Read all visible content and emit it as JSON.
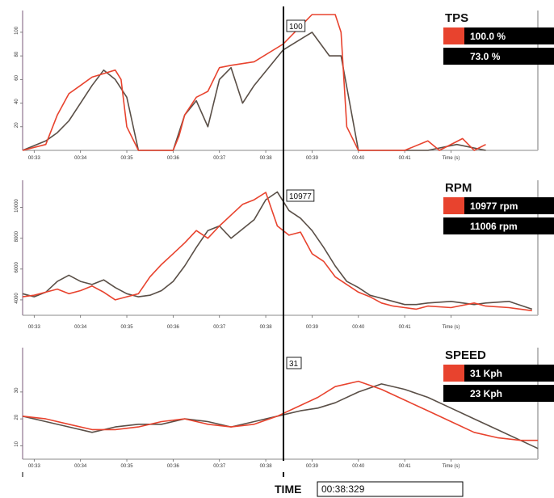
{
  "colors": {
    "red": "#e8432e",
    "gray": "#5a4f47",
    "black": "#000000",
    "grid": "#cfcfcf"
  },
  "cursor": {
    "time_label": "TIME",
    "time_value": "00:38:329",
    "x_time": 38.329
  },
  "chart_data": [
    {
      "type": "line",
      "title": "TPS",
      "ylim": [
        0,
        115
      ],
      "yticks": [
        20,
        40,
        60,
        80,
        100
      ],
      "xlim": [
        33.0,
        41.9
      ],
      "xticks": [
        {
          "t": 33.2,
          "label": "00:33"
        },
        {
          "t": 34.0,
          "label": "00:34"
        },
        {
          "t": 34.8,
          "label": "00:35"
        },
        {
          "t": 35.6,
          "label": "00:36"
        },
        {
          "t": 36.4,
          "label": "00:37"
        },
        {
          "t": 37.2,
          "label": "00:38"
        },
        {
          "t": 38.0,
          "label": "00:39"
        },
        {
          "t": 38.8,
          "label": "00:40"
        },
        {
          "t": 39.6,
          "label": "00:41"
        },
        {
          "t": 40.4,
          "label": "Time (s)"
        }
      ],
      "cursor_label": "100",
      "series": [
        {
          "color": "#e8432e",
          "values_label": "100.0 %",
          "x": [
            33.0,
            33.4,
            33.6,
            33.8,
            34.0,
            34.2,
            34.6,
            34.7,
            34.8,
            35.0,
            35.6,
            35.7,
            35.8,
            36.0,
            36.2,
            36.4,
            36.6,
            37.0,
            37.5,
            38.0,
            38.4,
            38.5,
            38.6,
            38.8,
            39.0,
            39.2,
            39.4,
            39.6,
            40.0,
            40.2,
            40.6,
            40.8,
            41.0
          ],
          "y": [
            0,
            5,
            30,
            48,
            55,
            62,
            68,
            60,
            20,
            0,
            0,
            12,
            30,
            45,
            50,
            70,
            72,
            75,
            90,
            115,
            115,
            100,
            20,
            0,
            0,
            0,
            0,
            0,
            8,
            0,
            10,
            0,
            5
          ]
        },
        {
          "color": "#5a4f47",
          "values_label": "73.0 %",
          "x": [
            33.0,
            33.4,
            33.6,
            33.8,
            34.0,
            34.2,
            34.4,
            34.6,
            34.8,
            35.0,
            35.2,
            35.4,
            35.6,
            35.8,
            36.0,
            36.2,
            36.4,
            36.6,
            36.8,
            37.0,
            37.5,
            38.0,
            38.3,
            38.5,
            38.8,
            39.0,
            39.5,
            40.0,
            40.5,
            41.0
          ],
          "y": [
            0,
            8,
            15,
            25,
            40,
            55,
            68,
            60,
            45,
            0,
            0,
            0,
            0,
            30,
            42,
            20,
            60,
            70,
            40,
            55,
            85,
            100,
            80,
            80,
            0,
            0,
            0,
            0,
            5,
            0
          ]
        }
      ]
    },
    {
      "type": "line",
      "title": "RPM",
      "ylim": [
        3000,
        11500
      ],
      "yticks": [
        4000,
        6000,
        8000,
        10000
      ],
      "xlim": [
        33.0,
        41.9
      ],
      "xticks": [
        {
          "t": 33.2,
          "label": "00:33"
        },
        {
          "t": 34.0,
          "label": "00:34"
        },
        {
          "t": 34.8,
          "label": "00:35"
        },
        {
          "t": 35.6,
          "label": "00:36"
        },
        {
          "t": 36.4,
          "label": "00:37"
        },
        {
          "t": 37.2,
          "label": "00:38"
        },
        {
          "t": 38.0,
          "label": "00:39"
        },
        {
          "t": 38.8,
          "label": "00:40"
        },
        {
          "t": 39.6,
          "label": "00:41"
        },
        {
          "t": 40.4,
          "label": "Time (s)"
        }
      ],
      "cursor_label": "10977",
      "series": [
        {
          "color": "#e8432e",
          "values_label": "10977 rpm",
          "x": [
            33.0,
            33.2,
            33.4,
            33.6,
            33.8,
            34.0,
            34.2,
            34.4,
            34.6,
            34.8,
            35.0,
            35.2,
            35.4,
            35.6,
            35.8,
            36.0,
            36.2,
            36.4,
            36.6,
            36.8,
            37.0,
            37.2,
            37.4,
            37.6,
            37.8,
            38.0,
            38.2,
            38.4,
            38.6,
            38.8,
            39.0,
            39.2,
            39.4,
            39.6,
            39.8,
            40.0,
            40.4,
            40.8,
            41.0,
            41.4,
            41.8
          ],
          "y": [
            4200,
            4300,
            4500,
            4700,
            4400,
            4600,
            4900,
            4500,
            4000,
            4200,
            4400,
            5500,
            6300,
            7000,
            7700,
            8500,
            8000,
            8800,
            9500,
            10200,
            10500,
            10977,
            8800,
            8200,
            8400,
            7000,
            6500,
            5500,
            5000,
            4500,
            4200,
            3800,
            3600,
            3500,
            3400,
            3600,
            3500,
            3800,
            3600,
            3500,
            3300
          ]
        },
        {
          "color": "#5a4f47",
          "values_label": "11006 rpm",
          "x": [
            33.0,
            33.2,
            33.4,
            33.6,
            33.8,
            34.0,
            34.2,
            34.4,
            34.6,
            34.8,
            35.0,
            35.2,
            35.4,
            35.6,
            35.8,
            36.0,
            36.2,
            36.4,
            36.6,
            36.8,
            37.0,
            37.2,
            37.4,
            37.6,
            37.8,
            38.0,
            38.2,
            38.4,
            38.6,
            38.8,
            39.0,
            39.2,
            39.4,
            39.6,
            39.8,
            40.0,
            40.4,
            40.8,
            41.0,
            41.4,
            41.8
          ],
          "y": [
            4400,
            4200,
            4500,
            5200,
            5600,
            5200,
            5000,
            5300,
            4800,
            4400,
            4200,
            4300,
            4600,
            5200,
            6200,
            7400,
            8500,
            8800,
            8000,
            8600,
            9200,
            10500,
            11006,
            9800,
            9300,
            8500,
            7400,
            6200,
            5200,
            4800,
            4300,
            4100,
            3900,
            3700,
            3700,
            3800,
            3900,
            3700,
            3800,
            3900,
            3400
          ]
        }
      ]
    },
    {
      "type": "line",
      "title": "SPEED",
      "ylim": [
        5,
        45
      ],
      "yticks": [
        10,
        20,
        30
      ],
      "xlim": [
        33.0,
        41.9
      ],
      "xticks": [
        {
          "t": 33.2,
          "label": "00:33"
        },
        {
          "t": 34.0,
          "label": "00:34"
        },
        {
          "t": 34.8,
          "label": "00:35"
        },
        {
          "t": 35.6,
          "label": "00:36"
        },
        {
          "t": 36.4,
          "label": "00:37"
        },
        {
          "t": 37.2,
          "label": "00:38"
        },
        {
          "t": 38.0,
          "label": "00:39"
        },
        {
          "t": 38.8,
          "label": "00:40"
        },
        {
          "t": 39.6,
          "label": "00:41"
        },
        {
          "t": 40.4,
          "label": "Time (s)"
        }
      ],
      "cursor_label": "31",
      "series": [
        {
          "color": "#e8432e",
          "values_label": "31 Kph",
          "x": [
            33.0,
            33.4,
            33.8,
            34.2,
            34.6,
            35.0,
            35.4,
            35.8,
            36.2,
            36.6,
            37.0,
            37.4,
            37.8,
            38.1,
            38.4,
            38.8,
            39.2,
            39.6,
            40.0,
            40.4,
            40.8,
            41.2,
            41.6,
            41.9
          ],
          "y": [
            21,
            20,
            18,
            16,
            16,
            17,
            19,
            20,
            18,
            17,
            18,
            21,
            25,
            28,
            32,
            34,
            31,
            27,
            23,
            19,
            15,
            13,
            12,
            12
          ]
        },
        {
          "color": "#5a4f47",
          "values_label": "23 Kph",
          "x": [
            33.0,
            33.4,
            33.8,
            34.2,
            34.6,
            35.0,
            35.4,
            35.8,
            36.2,
            36.6,
            37.0,
            37.4,
            37.8,
            38.1,
            38.4,
            38.8,
            39.2,
            39.6,
            40.0,
            40.4,
            40.8,
            41.2,
            41.6,
            41.9
          ],
          "y": [
            21,
            19,
            17,
            15,
            17,
            18,
            18,
            20,
            19,
            17,
            19,
            21,
            23,
            24,
            26,
            30,
            33,
            31,
            28,
            24,
            20,
            16,
            12,
            9
          ]
        }
      ]
    }
  ]
}
